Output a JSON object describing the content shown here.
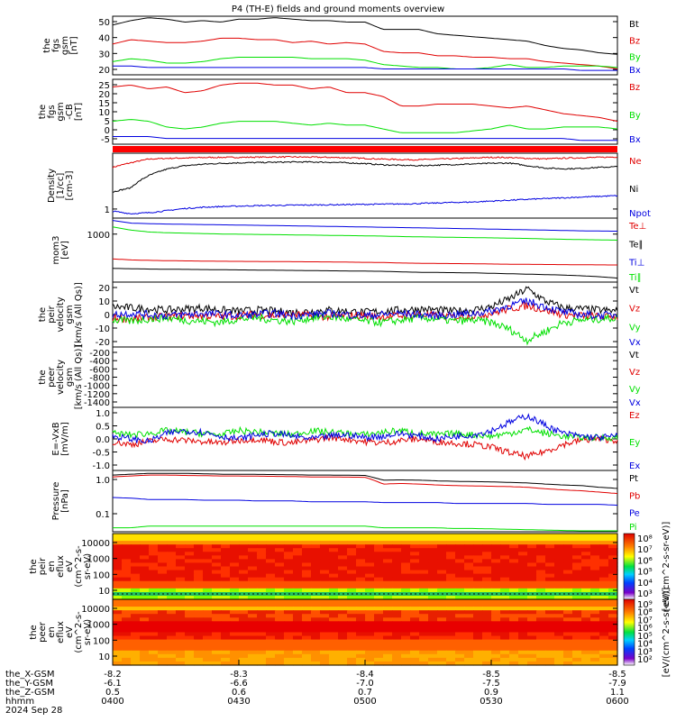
{
  "title": "P4 (TH-E) fields and ground moments overview",
  "colors": {
    "black": "#000000",
    "red": "#e00000",
    "green": "#00e000",
    "blue": "#0000e0",
    "axis": "#000000"
  },
  "chart_data": [
    {
      "type": "line",
      "ylabel": [
        "the",
        "fgs",
        "gsm",
        "[nT]"
      ],
      "yticks": [
        "50",
        "40",
        "30",
        "20"
      ],
      "ylim": [
        16,
        56
      ],
      "series": [
        {
          "name": "Bt",
          "color": "#000000",
          "values": [
            50,
            53,
            55,
            54,
            52,
            53,
            52,
            54,
            54,
            55,
            54,
            53,
            53,
            52,
            52,
            47,
            47,
            47,
            44,
            43,
            42,
            41,
            40,
            39,
            36,
            34,
            33,
            31,
            30
          ]
        },
        {
          "name": "Bz",
          "color": "#e00000",
          "values": [
            37,
            40,
            39,
            38,
            38,
            39,
            41,
            41,
            40,
            40,
            38,
            39,
            37,
            38,
            37,
            32,
            31,
            31,
            29,
            29,
            28,
            28,
            27,
            27,
            25,
            24,
            23,
            22,
            20
          ]
        },
        {
          "name": "By",
          "color": "#00e000",
          "values": [
            25,
            27,
            26,
            24,
            24,
            25,
            27,
            28,
            28,
            28,
            28,
            27,
            27,
            27,
            26,
            23,
            22,
            21,
            21,
            20,
            20,
            21,
            23,
            21,
            21,
            22,
            22,
            22,
            21
          ]
        },
        {
          "name": "Bx",
          "color": "#0000e0",
          "values": [
            22,
            22,
            21,
            21,
            21,
            21,
            21,
            21,
            21,
            21,
            21,
            21,
            21,
            21,
            21,
            20,
            20,
            20,
            20,
            20,
            20,
            20,
            20,
            20,
            20,
            20,
            19,
            19,
            19
          ]
        }
      ]
    },
    {
      "type": "line",
      "ylabel": [
        "the",
        "fgs",
        "gsm",
        "-CB",
        "[nT]"
      ],
      "yticks": [
        "25",
        "20",
        "15",
        "10",
        "5",
        "0",
        "-5"
      ],
      "ylim": [
        -7,
        27
      ],
      "series": [
        {
          "name": "Bz",
          "color": "#e00000",
          "values": [
            23,
            24,
            22,
            23,
            20,
            21,
            24,
            25,
            25,
            24,
            24,
            22,
            23,
            20,
            20,
            18,
            13,
            13,
            14,
            14,
            14,
            13,
            12,
            13,
            11,
            9,
            8,
            7,
            5
          ]
        },
        {
          "name": "By",
          "color": "#00e000",
          "values": [
            5,
            6,
            5,
            2,
            1,
            2,
            4,
            5,
            5,
            5,
            4,
            3,
            4,
            3,
            3,
            1,
            -1,
            -1,
            -1,
            -1,
            0,
            1,
            3,
            1,
            1,
            2,
            2,
            2,
            1
          ]
        },
        {
          "name": "Bx",
          "color": "#0000e0",
          "values": [
            -3,
            -3,
            -3,
            -4,
            -4,
            -4,
            -4,
            -4,
            -4,
            -4,
            -4,
            -4,
            -4,
            -4,
            -4,
            -4,
            -4,
            -4,
            -4,
            -4,
            -4,
            -4,
            -4,
            -4,
            -4,
            -4,
            -5,
            -5,
            -5
          ]
        }
      ]
    },
    {
      "type": "line",
      "ylabel": [
        "Density",
        "[1/cc]",
        "[cm-3]"
      ],
      "yticks": [
        "1"
      ],
      "ylim": [
        0.5,
        12
      ],
      "series": [
        {
          "name": "Ne",
          "color": "#e00000",
          "values": [
            6,
            7.5,
            9,
            9.3,
            9.5,
            9.7,
            9.8,
            9.8,
            9.9,
            10,
            10,
            9.9,
            9.8,
            9.6,
            9.3,
            9,
            8.8,
            8.7,
            9,
            9.2,
            9.5,
            9.8,
            9.7,
            9.3,
            9.1,
            9.4,
            9.6,
            9.8,
            10
          ]
        },
        {
          "name": "Ni",
          "color": "#000000",
          "values": [
            1.8,
            2.2,
            4,
            5.5,
            6.5,
            7,
            7.3,
            7.5,
            7.6,
            7.7,
            7.8,
            7.8,
            7.7,
            7.5,
            7.2,
            6.8,
            6.6,
            6.5,
            6.7,
            6.9,
            7.1,
            7.3,
            7.4,
            6.5,
            5.8,
            5.6,
            5.7,
            6,
            6.2
          ]
        },
        {
          "name": "Npot",
          "color": "#0000e0",
          "values": [
            0.7,
            0.62,
            0.65,
            0.72,
            0.8,
            0.85,
            0.88,
            0.9,
            0.92,
            0.93,
            0.94,
            0.95,
            0.96,
            0.97,
            0.98,
            0.99,
            1.0,
            1.02,
            1.05,
            1.08,
            1.1,
            1.15,
            1.2,
            1.25,
            1.3,
            1.35,
            1.4,
            1.45,
            1.5
          ]
        }
      ]
    },
    {
      "type": "line",
      "ylabel": [
        "mom3",
        "[eV]"
      ],
      "yticks": [
        "1000"
      ],
      "ylim": [
        50,
        2000
      ],
      "series": [
        {
          "name": "Te⊥",
          "color": "#e00000",
          "values": [
            190,
            180,
            175,
            172,
            170,
            168,
            166,
            165,
            164,
            163,
            162,
            161,
            160,
            158,
            156,
            155,
            150,
            148,
            146,
            145,
            144,
            142,
            140,
            139,
            138,
            137,
            136,
            135,
            134
          ]
        },
        {
          "name": "Te∥",
          "color": "#000000",
          "values": [
            110,
            108,
            106,
            105,
            104,
            103,
            102,
            101,
            100,
            99,
            98,
            97,
            96,
            95,
            94,
            93,
            90,
            88,
            87,
            86,
            85,
            83,
            81,
            79,
            77,
            75,
            72,
            68,
            63
          ]
        },
        {
          "name": "Ti⊥",
          "color": "#0000e0",
          "values": [
            1750,
            1500,
            1450,
            1420,
            1400,
            1380,
            1360,
            1340,
            1320,
            1300,
            1280,
            1260,
            1240,
            1220,
            1200,
            1180,
            1160,
            1140,
            1120,
            1100,
            1080,
            1060,
            1040,
            1020,
            1000,
            980,
            960,
            950,
            940
          ]
        },
        {
          "name": "Ti∥",
          "color": "#00e000",
          "values": [
            1200,
            1000,
            900,
            860,
            840,
            820,
            800,
            790,
            780,
            770,
            760,
            750,
            740,
            730,
            720,
            710,
            690,
            680,
            670,
            660,
            650,
            640,
            630,
            620,
            600,
            590,
            580,
            570,
            560
          ]
        }
      ]
    },
    {
      "type": "line",
      "ylabel": [
        "the",
        "peir",
        "velocity",
        "gsm",
        "[km/s (All Qs)]"
      ],
      "yticks": [
        "20",
        "10",
        "0",
        "-10",
        "-20"
      ],
      "ylim": [
        -28,
        30
      ],
      "series": [
        {
          "name": "Vt",
          "color": "#000000",
          "values": [
            8,
            7,
            6,
            5,
            6,
            7,
            5,
            4,
            5,
            4,
            3,
            4,
            5,
            4,
            3,
            4,
            5,
            6,
            5,
            4,
            5,
            8,
            15,
            24,
            13,
            7,
            6,
            5,
            4
          ]
        },
        {
          "name": "Vz",
          "color": "#e00000",
          "values": [
            -2,
            -3,
            -2,
            -1,
            0,
            0,
            -1,
            0,
            1,
            0,
            1,
            0,
            -1,
            0,
            0,
            -1,
            0,
            1,
            0,
            -1,
            0,
            2,
            6,
            9,
            5,
            1,
            0,
            -1,
            -1
          ]
        },
        {
          "name": "Vy",
          "color": "#00e000",
          "values": [
            -4,
            -5,
            -3,
            -2,
            -4,
            -5,
            -6,
            -3,
            -2,
            -4,
            -5,
            -2,
            -1,
            -3,
            -5,
            -6,
            -4,
            -2,
            -3,
            -5,
            -4,
            -6,
            -12,
            -22,
            -14,
            -6,
            -4,
            -3,
            -2
          ]
        },
        {
          "name": "Vx",
          "color": "#0000e0",
          "values": [
            1,
            2,
            1,
            0,
            1,
            2,
            1,
            0,
            1,
            2,
            0,
            1,
            2,
            1,
            0,
            1,
            2,
            1,
            0,
            1,
            2,
            4,
            9,
            13,
            8,
            3,
            1,
            0,
            1
          ]
        }
      ]
    },
    {
      "type": "line",
      "ylabel": [
        "the",
        "peer",
        "velocity",
        "gsm",
        "[km/s (All Qs)]"
      ],
      "yticks": [
        "-200",
        "-400",
        "-600",
        "-800",
        "-1000",
        "-1200",
        "-1400"
      ],
      "ylim": [
        -1480,
        -120
      ],
      "series": [
        {
          "name": "Vt",
          "color": "#000000",
          "values": []
        },
        {
          "name": "Vz",
          "color": "#e00000",
          "values": []
        },
        {
          "name": "Vy",
          "color": "#00e000",
          "values": []
        },
        {
          "name": "Vx",
          "color": "#0000e0",
          "values": []
        }
      ]
    },
    {
      "type": "line",
      "ylabel": [
        "E=-VxB",
        "[mV/m]"
      ],
      "yticks": [
        "1.0",
        "0.5",
        "0.0",
        "-0.5",
        "-1.0"
      ],
      "ylim": [
        -1.15,
        1.15
      ],
      "series": [
        {
          "name": "Ez",
          "color": "#e00000",
          "values": [
            -0.1,
            -0.2,
            -0.1,
            0,
            -0.05,
            -0.1,
            -0.15,
            -0.05,
            0,
            -0.1,
            -0.15,
            -0.05,
            0.05,
            0,
            -0.1,
            -0.15,
            -0.05,
            0,
            -0.1,
            -0.15,
            -0.2,
            -0.3,
            -0.5,
            -0.65,
            -0.45,
            -0.2,
            -0.05,
            0,
            -0.05
          ]
        },
        {
          "name": "Ey",
          "color": "#00e000",
          "values": [
            0.2,
            0.15,
            0.2,
            0.3,
            0.25,
            0.2,
            0.15,
            0.3,
            0.25,
            0.2,
            0.15,
            0.3,
            0.25,
            0.2,
            0.15,
            0.25,
            0.3,
            0.2,
            0.15,
            0.2,
            0.15,
            0.1,
            0.2,
            0.35,
            0.2,
            0.1,
            0.05,
            0.05,
            0.05
          ]
        },
        {
          "name": "Ex",
          "color": "#0000e0",
          "values": [
            0.1,
            0,
            -0.1,
            0.2,
            0.3,
            0.25,
            0.1,
            0,
            0.15,
            0.2,
            0.1,
            0,
            0.1,
            0.15,
            0.05,
            0.1,
            0.2,
            0.1,
            0,
            0.1,
            0.15,
            0.3,
            0.6,
            0.85,
            0.5,
            0.2,
            0.1,
            0.05,
            0.1
          ]
        }
      ]
    },
    {
      "type": "line",
      "ylabel": [
        "Pressure",
        "[nPa]"
      ],
      "yticks": [
        "1.0",
        "0.1"
      ],
      "ylim": [
        0.04,
        1.3
      ],
      "series": [
        {
          "name": "Pt",
          "color": "#000000",
          "values": [
            1.0,
            1.05,
            1.1,
            1.1,
            1.1,
            1.08,
            1.05,
            1.05,
            1.04,
            1.03,
            1.02,
            1.0,
            1.0,
            0.99,
            0.98,
            0.75,
            0.76,
            0.75,
            0.72,
            0.7,
            0.69,
            0.68,
            0.66,
            0.64,
            0.6,
            0.57,
            0.55,
            0.5,
            0.47
          ]
        },
        {
          "name": "Pb",
          "color": "#e00000",
          "values": [
            0.9,
            0.95,
            1.0,
            1.0,
            0.98,
            0.97,
            0.95,
            0.95,
            0.94,
            0.93,
            0.92,
            0.9,
            0.9,
            0.89,
            0.88,
            0.6,
            0.62,
            0.6,
            0.57,
            0.55,
            0.54,
            0.53,
            0.52,
            0.5,
            0.46,
            0.43,
            0.41,
            0.38,
            0.35
          ]
        },
        {
          "name": "Pe",
          "color": "#0000e0",
          "values": [
            0.28,
            0.27,
            0.25,
            0.25,
            0.25,
            0.24,
            0.24,
            0.24,
            0.23,
            0.23,
            0.23,
            0.22,
            0.22,
            0.22,
            0.22,
            0.21,
            0.21,
            0.21,
            0.21,
            0.2,
            0.2,
            0.2,
            0.2,
            0.2,
            0.19,
            0.19,
            0.19,
            0.19,
            0.18
          ]
        },
        {
          "name": "Pi",
          "color": "#00e000",
          "values": [
            0.05,
            0.05,
            0.055,
            0.055,
            0.055,
            0.055,
            0.055,
            0.055,
            0.055,
            0.055,
            0.055,
            0.055,
            0.055,
            0.055,
            0.055,
            0.05,
            0.05,
            0.05,
            0.05,
            0.048,
            0.048,
            0.047,
            0.046,
            0.045,
            0.044,
            0.043,
            0.042,
            0.041,
            0.04
          ]
        }
      ]
    },
    {
      "type": "heatmap",
      "ylabel": [
        "the",
        "peir",
        "en",
        "eflux",
        "eV",
        "(cm^2-s-",
        "sr-eV)"
      ],
      "yticks": [
        "10000",
        "1000",
        "100",
        "10"
      ],
      "colorbar_ticks": [
        "10⁸",
        "10⁷",
        "10⁶",
        "10⁵",
        "10⁴",
        "10³"
      ],
      "colorbar_label": "[eV/(cm^2-s-sr-eV)]"
    },
    {
      "type": "heatmap",
      "ylabel": [
        "the",
        "peer",
        "en",
        "eflux",
        "eV",
        "(cm^2-s-",
        "sr-eV)"
      ],
      "yticks": [
        "10000",
        "1000",
        "100",
        "10"
      ],
      "colorbar_ticks": [
        "10⁹",
        "10⁸",
        "10⁷",
        "10⁶",
        "10⁵",
        "10⁴",
        "10³",
        "10²"
      ],
      "colorbar_label": "[eV/(cm^2-s-sr-eV)]"
    }
  ],
  "xaxis": {
    "rows": [
      {
        "label": "the_X-GSM",
        "values": [
          "-8.2",
          "-8.3",
          "-8.4",
          "-8.5",
          "-8.5"
        ]
      },
      {
        "label": "the_Y-GSM",
        "values": [
          "-6.1",
          "-6.6",
          "-7.0",
          "-7.5",
          "-7.9"
        ]
      },
      {
        "label": "the_Z-GSM",
        "values": [
          "0.5",
          "0.6",
          "0.7",
          "0.9",
          "1.1"
        ]
      },
      {
        "label": "hhmm",
        "values": [
          "0400",
          "0430",
          "0500",
          "0530",
          "0600"
        ]
      }
    ],
    "date": "2024 Sep 28"
  }
}
